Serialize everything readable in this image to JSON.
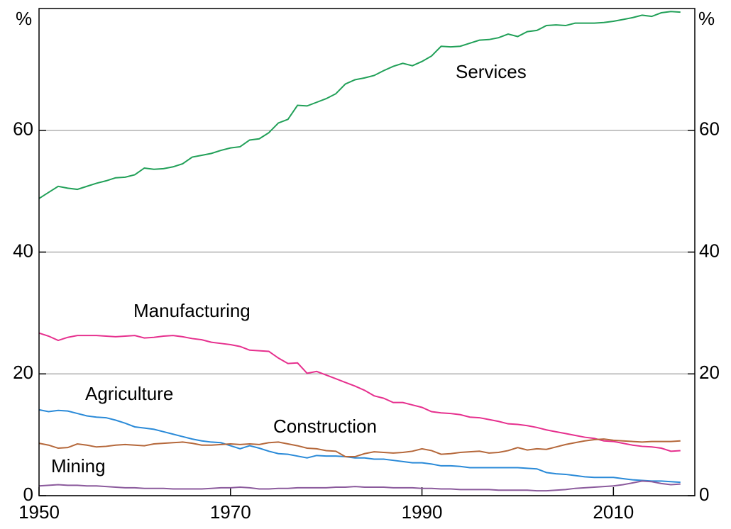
{
  "chart_data": {
    "type": "line",
    "y_unit": "%",
    "x": [
      1950,
      1951,
      1952,
      1953,
      1954,
      1955,
      1956,
      1957,
      1958,
      1959,
      1960,
      1961,
      1962,
      1963,
      1964,
      1965,
      1966,
      1967,
      1968,
      1969,
      1970,
      1971,
      1972,
      1973,
      1974,
      1975,
      1976,
      1977,
      1978,
      1979,
      1980,
      1981,
      1982,
      1983,
      1984,
      1985,
      1986,
      1987,
      1988,
      1989,
      1990,
      1991,
      1992,
      1993,
      1994,
      1995,
      1996,
      1997,
      1998,
      1999,
      2000,
      2001,
      2002,
      2003,
      2004,
      2005,
      2006,
      2007,
      2008,
      2009,
      2010,
      2011,
      2012,
      2013,
      2014,
      2015,
      2016,
      2017
    ],
    "series": [
      {
        "name": "Services",
        "color": "#21a058",
        "values": [
          48.8,
          49.8,
          50.8,
          50.5,
          50.3,
          50.8,
          51.3,
          51.7,
          52.2,
          52.3,
          52.7,
          53.8,
          53.6,
          53.7,
          54.0,
          54.5,
          55.6,
          55.9,
          56.2,
          56.7,
          57.1,
          57.3,
          58.4,
          58.6,
          59.6,
          61.2,
          61.8,
          64.1,
          64.0,
          64.6,
          65.2,
          66.0,
          67.6,
          68.3,
          68.6,
          69.0,
          69.8,
          70.5,
          71.0,
          70.6,
          71.3,
          72.2,
          73.8,
          73.7,
          73.8,
          74.3,
          74.8,
          74.9,
          75.2,
          75.8,
          75.4,
          76.2,
          76.4,
          77.2,
          77.3,
          77.2,
          77.6,
          77.6,
          77.6,
          77.7,
          77.9,
          78.2,
          78.5,
          78.9,
          78.7,
          79.3,
          79.5,
          79.4
        ]
      },
      {
        "name": "Manufacturing",
        "color": "#e6308e",
        "values": [
          26.7,
          26.2,
          25.5,
          26.0,
          26.3,
          26.3,
          26.3,
          26.2,
          26.1,
          26.2,
          26.3,
          25.9,
          26.0,
          26.2,
          26.3,
          26.1,
          25.8,
          25.6,
          25.2,
          25.0,
          24.8,
          24.5,
          23.9,
          23.8,
          23.7,
          22.6,
          21.7,
          21.8,
          20.1,
          20.4,
          19.8,
          19.2,
          18.6,
          18.0,
          17.3,
          16.4,
          16.0,
          15.3,
          15.3,
          14.9,
          14.5,
          13.8,
          13.6,
          13.5,
          13.3,
          12.9,
          12.8,
          12.5,
          12.2,
          11.8,
          11.7,
          11.5,
          11.2,
          10.8,
          10.5,
          10.2,
          9.9,
          9.6,
          9.4,
          9.0,
          8.9,
          8.6,
          8.3,
          8.1,
          8.0,
          7.8,
          7.3,
          7.4
        ]
      },
      {
        "name": "Agriculture",
        "color": "#2a8ad8",
        "values": [
          14.1,
          13.8,
          14.0,
          13.9,
          13.5,
          13.1,
          12.9,
          12.8,
          12.4,
          11.9,
          11.3,
          11.1,
          10.9,
          10.5,
          10.1,
          9.7,
          9.3,
          9.0,
          8.8,
          8.7,
          8.2,
          7.7,
          8.2,
          7.8,
          7.3,
          6.9,
          6.8,
          6.5,
          6.2,
          6.6,
          6.5,
          6.5,
          6.4,
          6.2,
          6.2,
          6.0,
          6.0,
          5.8,
          5.6,
          5.4,
          5.4,
          5.2,
          4.9,
          4.9,
          4.8,
          4.6,
          4.6,
          4.6,
          4.6,
          4.6,
          4.6,
          4.5,
          4.4,
          3.8,
          3.6,
          3.5,
          3.3,
          3.1,
          3.0,
          3.0,
          3.0,
          2.8,
          2.6,
          2.5,
          2.4,
          2.4,
          2.3,
          2.2
        ]
      },
      {
        "name": "Construction",
        "color": "#b5683b",
        "values": [
          8.6,
          8.3,
          7.8,
          7.9,
          8.5,
          8.3,
          8.0,
          8.1,
          8.3,
          8.4,
          8.3,
          8.2,
          8.5,
          8.6,
          8.7,
          8.8,
          8.6,
          8.3,
          8.3,
          8.4,
          8.5,
          8.4,
          8.5,
          8.4,
          8.7,
          8.8,
          8.5,
          8.2,
          7.8,
          7.7,
          7.4,
          7.3,
          6.4,
          6.4,
          6.9,
          7.2,
          7.1,
          7.0,
          7.1,
          7.3,
          7.7,
          7.4,
          6.8,
          6.9,
          7.1,
          7.2,
          7.3,
          7.0,
          7.1,
          7.4,
          7.9,
          7.5,
          7.7,
          7.6,
          8.0,
          8.4,
          8.7,
          9.0,
          9.2,
          9.3,
          9.1,
          9.0,
          8.9,
          8.8,
          8.9,
          8.9,
          8.9,
          9.0
        ]
      },
      {
        "name": "Mining",
        "color": "#8b5a9c",
        "values": [
          1.6,
          1.7,
          1.8,
          1.7,
          1.7,
          1.6,
          1.6,
          1.5,
          1.4,
          1.3,
          1.3,
          1.2,
          1.2,
          1.2,
          1.1,
          1.1,
          1.1,
          1.1,
          1.2,
          1.3,
          1.3,
          1.4,
          1.3,
          1.1,
          1.1,
          1.2,
          1.2,
          1.3,
          1.3,
          1.3,
          1.3,
          1.4,
          1.4,
          1.5,
          1.4,
          1.4,
          1.4,
          1.3,
          1.3,
          1.3,
          1.2,
          1.2,
          1.1,
          1.1,
          1.0,
          1.0,
          1.0,
          1.0,
          0.9,
          0.9,
          0.9,
          0.9,
          0.8,
          0.8,
          0.9,
          1.0,
          1.2,
          1.3,
          1.4,
          1.5,
          1.6,
          1.8,
          2.1,
          2.4,
          2.3,
          2.0,
          1.8,
          1.9
        ]
      }
    ],
    "xlim": [
      1950,
      2018.5
    ],
    "xticks": [
      1950,
      1970,
      1990,
      2010
    ],
    "ylim": [
      0,
      80
    ],
    "yticks": [
      0,
      20,
      40,
      60
    ],
    "grid": true
  }
}
